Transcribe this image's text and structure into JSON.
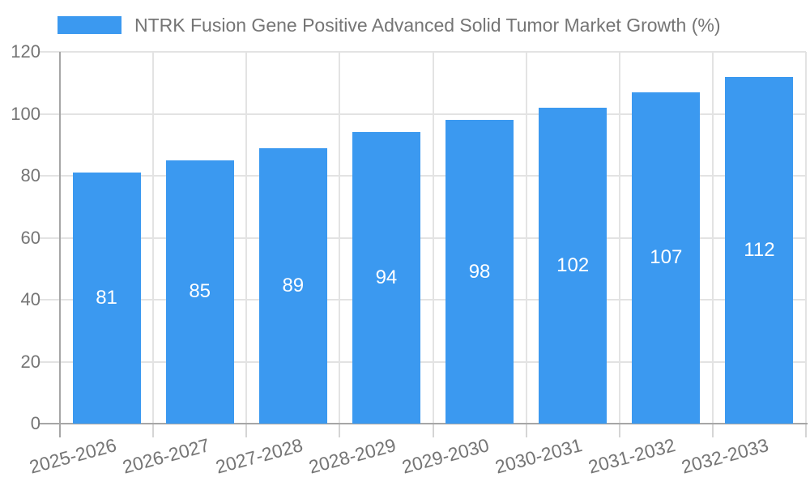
{
  "legend": {
    "label": "NTRK Fusion Gene Positive Advanced Solid Tumor Market Growth (%)"
  },
  "chart_data": {
    "type": "bar",
    "title": "NTRK Fusion Gene Positive Advanced Solid Tumor Market Growth (%)",
    "categories": [
      "2025-2026",
      "2026-2027",
      "2027-2028",
      "2028-2029",
      "2029-2030",
      "2030-2031",
      "2031-2032",
      "2032-2033"
    ],
    "values": [
      81,
      85,
      89,
      94,
      98,
      102,
      107,
      112
    ],
    "xlabel": "",
    "ylabel": "",
    "ylim": [
      0,
      120
    ],
    "y_ticks": [
      0,
      20,
      40,
      60,
      80,
      100,
      120
    ],
    "grid": true,
    "legend_position": "top-left",
    "data_labels": "inside-center",
    "x_label_rotation_deg": -15,
    "colors": {
      "bar": "#3B99F0",
      "bar_label": "#FFFFFF",
      "axis_line": "#A6A6A6",
      "gridline": "#E3E3E3",
      "tick_mark": "#D5D5D5",
      "text": "#757575"
    }
  }
}
